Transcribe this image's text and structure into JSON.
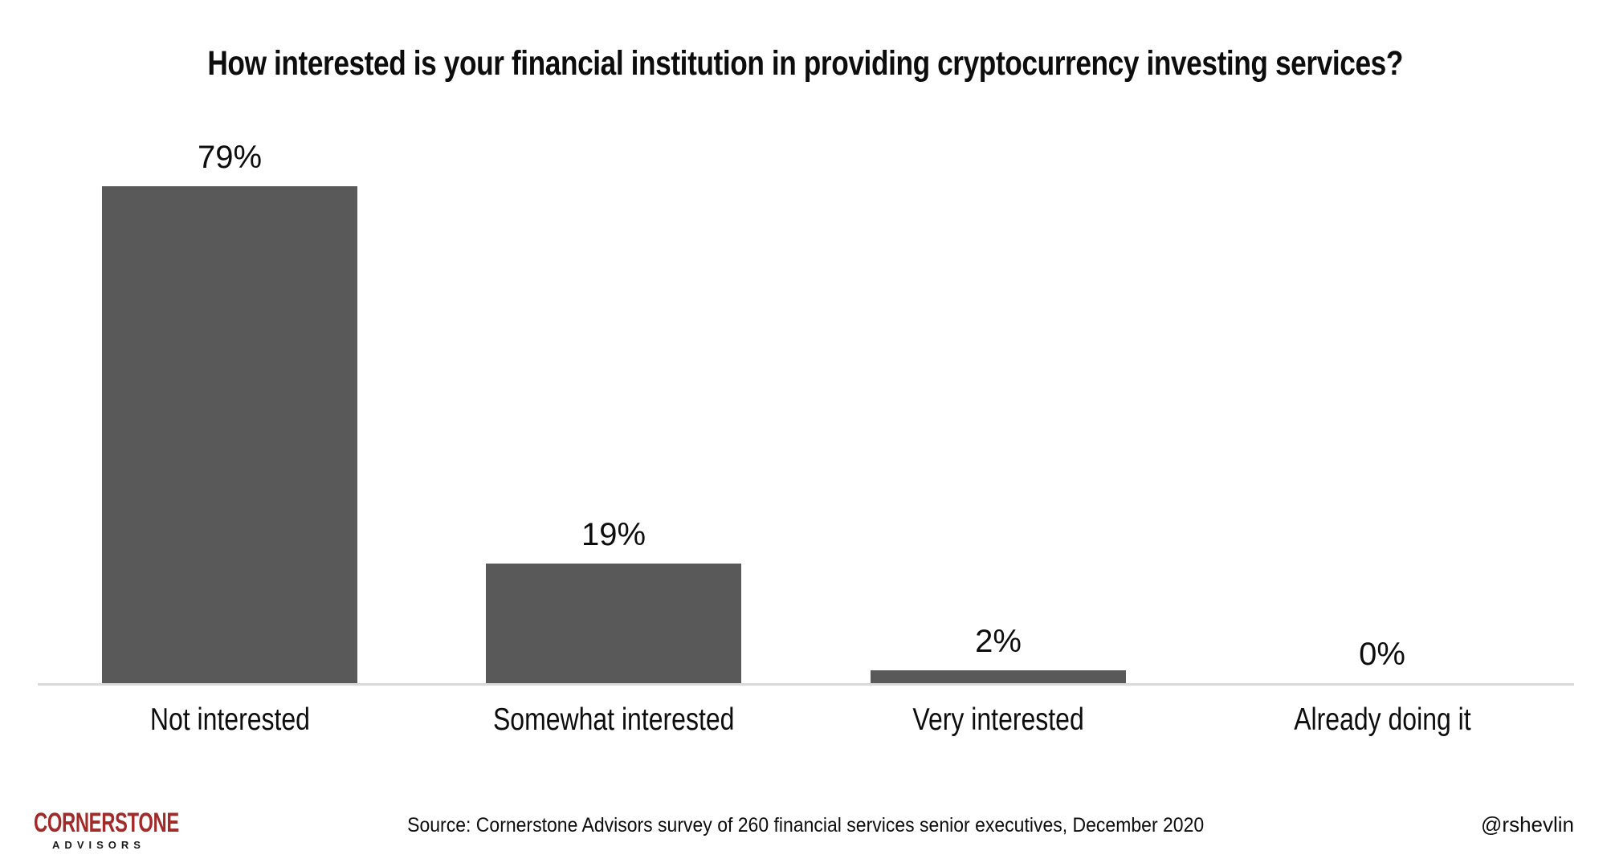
{
  "title": "How interested is your financial institution in providing cryptocurrency investing services?",
  "chart_data": {
    "type": "bar",
    "title": "How interested is your financial institution in providing cryptocurrency investing services?",
    "categories": [
      "Not interested",
      "Somewhat interested",
      "Very interested",
      "Already doing it"
    ],
    "values": [
      79,
      19,
      2,
      0
    ],
    "value_labels": [
      "79%",
      "19%",
      "2%",
      "0%"
    ],
    "xlabel": "",
    "ylabel": "",
    "ylim": [
      0,
      85
    ],
    "grid": false,
    "legend": false,
    "bar_color": "#595959",
    "axis_line_color": "#d9d9d9",
    "label_color": "#0d0d0d"
  },
  "footer": {
    "source": "Source: Cornerstone Advisors survey of 260 financial services senior executives, December 2020",
    "handle": "@rshevlin",
    "logo": {
      "primary": "CORNERSTONE",
      "secondary": "ADVISORS",
      "primary_color": "#a22b2a"
    }
  }
}
